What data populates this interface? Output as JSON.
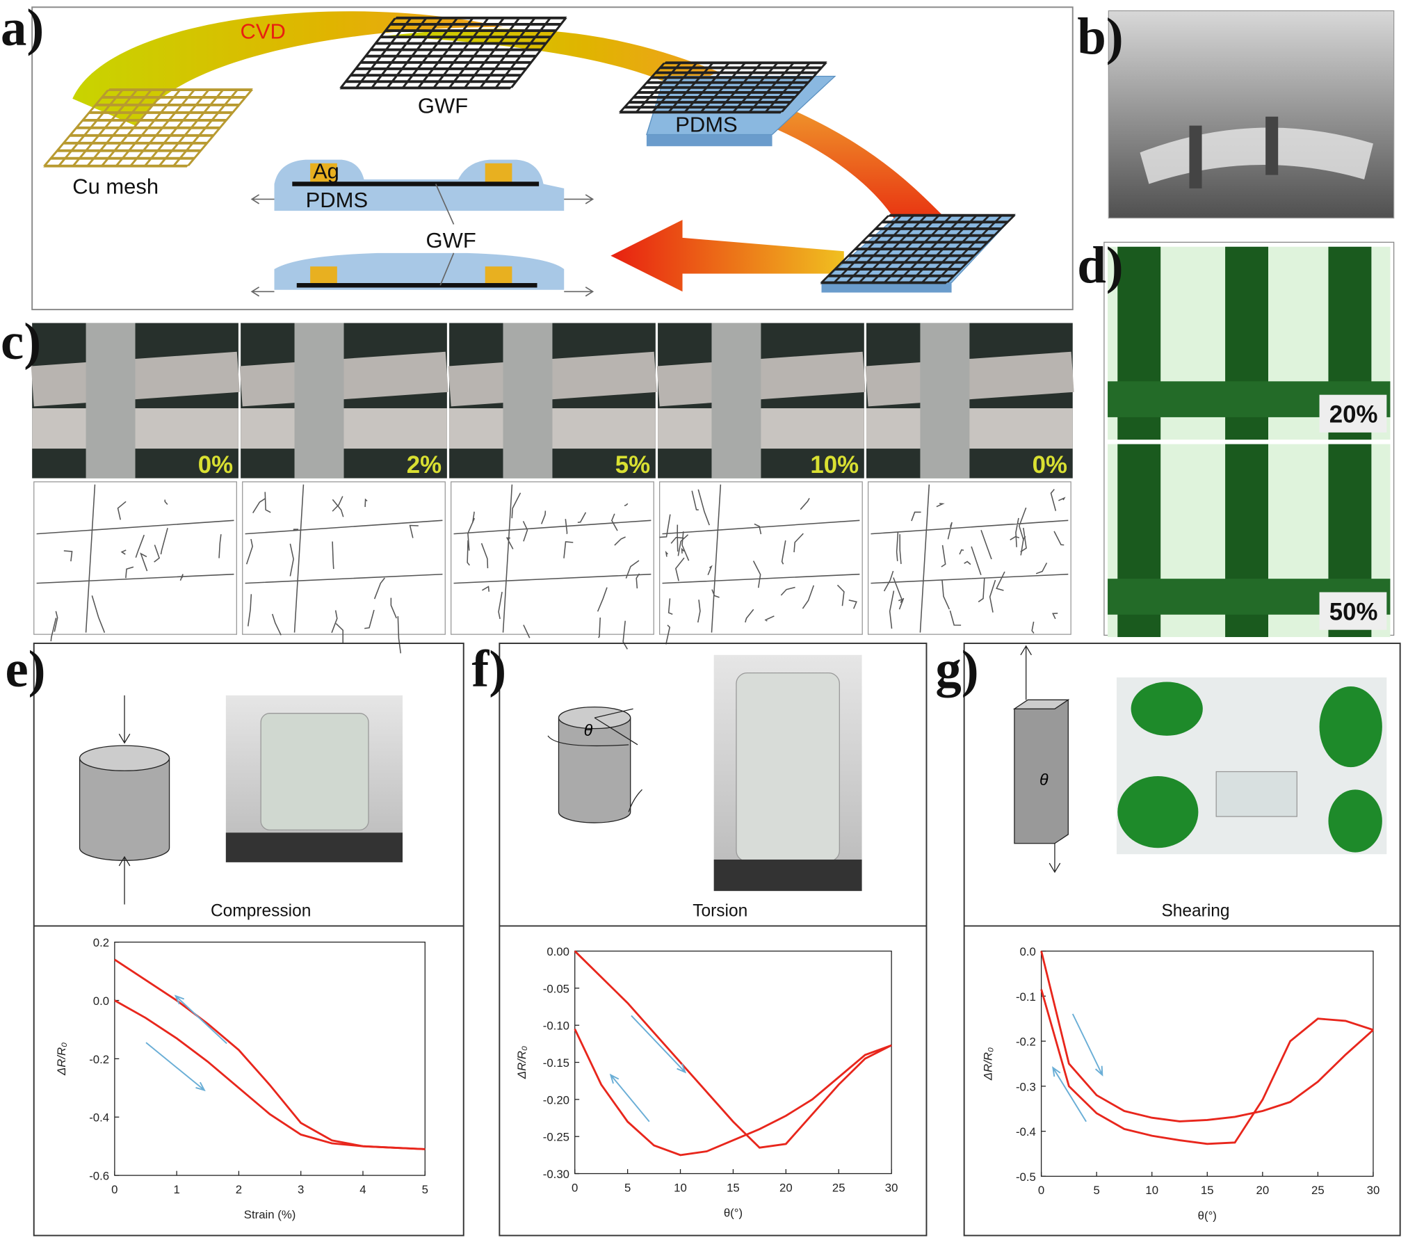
{
  "labels": {
    "a": "a)",
    "b": "b)",
    "c": "c)",
    "d": "d)",
    "e": "e)",
    "f": "f)",
    "g": "g)"
  },
  "panel_a": {
    "cvd": "CVD",
    "gwf_top": "GWF",
    "cu_mesh": "Cu mesh",
    "pdms_top": "PDMS",
    "ag": "Ag",
    "pdms_section": "PDMS",
    "gwf_section": "GWF"
  },
  "panel_c": {
    "strains": [
      "0%",
      "2%",
      "5%",
      "10%",
      "0%"
    ]
  },
  "panel_d": {
    "strains": [
      "20%",
      "50%"
    ]
  },
  "theta": "θ",
  "chart_data": [
    {
      "type": "line",
      "caption": "Compression",
      "x_label": "Strain (%)",
      "y_label": "ΔR/R₀",
      "x": [
        0,
        0.5,
        1,
        1.5,
        2,
        2.5,
        3,
        3.5,
        4,
        4.5,
        5
      ],
      "series": [
        {
          "color": "#e8261c",
          "values": [
            0.14,
            0.07,
            0.0,
            -0.08,
            -0.17,
            -0.29,
            -0.42,
            -0.48,
            -0.5,
            -0.505,
            -0.51
          ]
        },
        {
          "color": "#e8261c",
          "values": [
            0,
            -0.06,
            -0.13,
            -0.21,
            -0.3,
            -0.39,
            -0.46,
            -0.49,
            -0.5,
            -0.505,
            -0.51
          ]
        }
      ],
      "xlim": [
        0,
        5
      ],
      "xticks": [
        0,
        1,
        2,
        3,
        4,
        5
      ],
      "ylim": [
        -0.6,
        0.2
      ],
      "yticks": [
        -0.6,
        -0.4,
        -0.2,
        {
          "value": 0,
          "label": "0.0"
        },
        0.2
      ]
    },
    {
      "type": "line",
      "caption": "Torsion",
      "x_label": "θ(°)",
      "y_label": "ΔR/R₀",
      "x": [
        0,
        2.5,
        5,
        7.5,
        10,
        12.5,
        15,
        17.5,
        20,
        22.5,
        25,
        27.5,
        30
      ],
      "series": [
        {
          "color": "#e8261c",
          "values": [
            0,
            -0.035,
            -0.07,
            -0.11,
            -0.15,
            -0.19,
            -0.23,
            -0.265,
            -0.26,
            -0.22,
            -0.18,
            -0.145,
            -0.127
          ]
        },
        {
          "color": "#e8261c",
          "values": [
            -0.105,
            -0.18,
            -0.23,
            -0.262,
            -0.275,
            -0.27,
            -0.255,
            -0.24,
            -0.222,
            -0.2,
            -0.17,
            -0.14,
            -0.127
          ]
        }
      ],
      "xlim": [
        0,
        30
      ],
      "xticks": [
        0,
        5,
        10,
        15,
        20,
        25,
        30
      ],
      "ylim": [
        -0.3,
        0
      ],
      "yticks": [
        {
          "value": -0.3,
          "label": "-0.30"
        },
        {
          "value": -0.25,
          "label": "-0.25"
        },
        {
          "value": -0.2,
          "label": "-0.20"
        },
        {
          "value": -0.15,
          "label": "-0.15"
        },
        {
          "value": -0.1,
          "label": "-0.10"
        },
        {
          "value": -0.05,
          "label": "-0.05"
        },
        {
          "value": 0,
          "label": "0.00"
        }
      ]
    },
    {
      "type": "line",
      "caption": "Shearing",
      "x_label": "θ(°)",
      "y_label": "ΔR/R₀",
      "x": [
        0,
        2.5,
        5,
        7.5,
        10,
        12.5,
        15,
        17.5,
        20,
        22.5,
        25,
        27.5,
        30
      ],
      "series": [
        {
          "color": "#e8261c",
          "values": [
            0,
            -0.25,
            -0.32,
            -0.355,
            -0.37,
            -0.378,
            -0.375,
            -0.368,
            -0.355,
            -0.335,
            -0.29,
            -0.23,
            -0.175
          ]
        },
        {
          "color": "#e8261c",
          "values": [
            -0.085,
            -0.3,
            -0.36,
            -0.395,
            -0.41,
            -0.42,
            -0.428,
            -0.425,
            -0.33,
            -0.2,
            -0.15,
            -0.155,
            -0.175
          ]
        }
      ],
      "xlim": [
        0,
        30
      ],
      "xticks": [
        0,
        5,
        10,
        15,
        20,
        25,
        30
      ],
      "ylim": [
        -0.5,
        0
      ],
      "yticks": [
        -0.5,
        -0.4,
        -0.3,
        -0.2,
        -0.1,
        {
          "value": 0,
          "label": "0.0"
        }
      ]
    }
  ]
}
